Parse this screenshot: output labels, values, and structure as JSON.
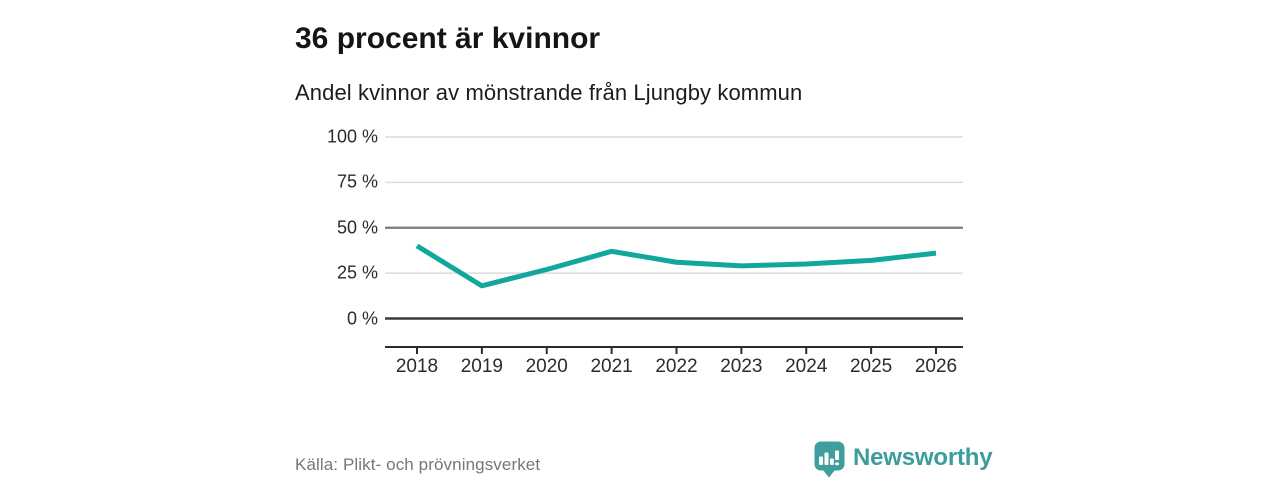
{
  "chart_data": {
    "type": "line",
    "title": "36 procent är kvinnor",
    "subtitle": "Andel kvinnor av mönstrande från Ljungby kommun",
    "categories": [
      "2018",
      "2019",
      "2020",
      "2021",
      "2022",
      "2023",
      "2024",
      "2025",
      "2026"
    ],
    "values": [
      40,
      18,
      27,
      37,
      31,
      29,
      30,
      32,
      36
    ],
    "unit": "%",
    "ylim": [
      0,
      100
    ],
    "y_ticks": [
      {
        "value": 0,
        "label": "0 %"
      },
      {
        "value": 25,
        "label": "25 %"
      },
      {
        "value": 50,
        "label": "50 %"
      },
      {
        "value": 75,
        "label": "75 %"
      },
      {
        "value": 100,
        "label": "100 %"
      }
    ],
    "grid": "horizontal",
    "legend": "none"
  },
  "footer": {
    "source": "Källa: Plikt- och prövningsverket",
    "brand": "Newsworthy"
  },
  "colors": {
    "accent": "#12a79c",
    "brand_teal": "#3b9e9c",
    "grid_light": "#dcdcdc",
    "grid_mid": "#7c7c80",
    "axis_dark": "#3a3a3c",
    "axis_line": "#2c2c2f"
  }
}
